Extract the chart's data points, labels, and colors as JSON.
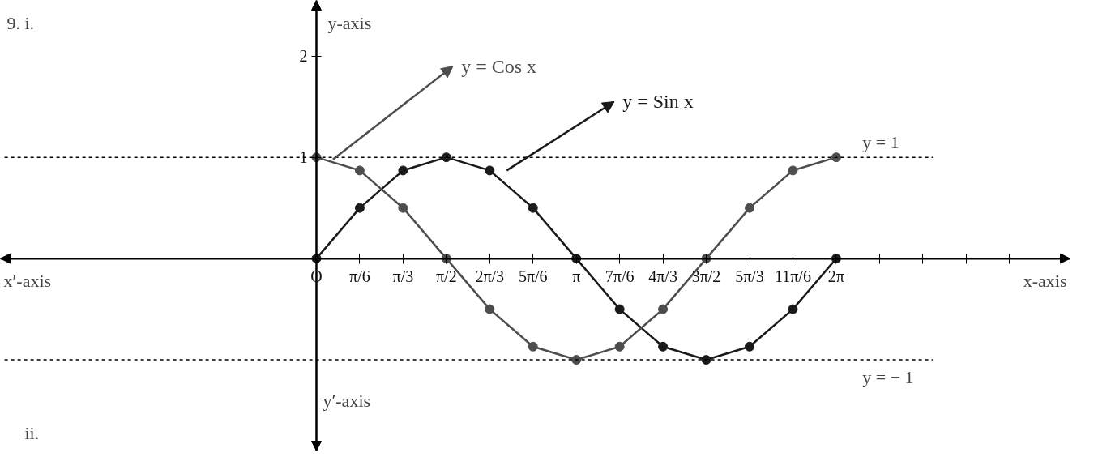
{
  "chart_data": {
    "type": "line",
    "xlabel": "x-axis",
    "ylabel": "y-axis",
    "annotations": [
      "9.  i.",
      "ii.",
      "x′-axis",
      "y′-axis"
    ],
    "x": [
      0,
      0.5236,
      1.0472,
      1.5708,
      2.0944,
      2.618,
      3.1416,
      3.6652,
      4.1888,
      4.7124,
      5.236,
      5.7596,
      6.2832
    ],
    "series": [
      {
        "name": "y = Sin x",
        "color": "#1a1a1a",
        "values": [
          0,
          0.5,
          0.87,
          1,
          0.87,
          0.5,
          0,
          -0.5,
          -0.87,
          -1,
          -0.87,
          -0.5,
          0
        ]
      },
      {
        "name": "y = Cos x",
        "color": "#4d4d4d",
        "values": [
          1,
          0.87,
          0.5,
          0,
          -0.5,
          -0.87,
          -1,
          -0.87,
          -0.5,
          0,
          0.5,
          0.87,
          1
        ]
      }
    ],
    "xlim": [
      -3.82,
      9.11
    ],
    "ylim": [
      -1.9,
      2.55
    ],
    "xticks": [
      {
        "value": 0,
        "label": "O"
      },
      {
        "value": 0.5236,
        "label": "π/6"
      },
      {
        "value": 1.0472,
        "label": "π/3"
      },
      {
        "value": 1.5708,
        "label": "π/2"
      },
      {
        "value": 2.0944,
        "label": "2π/3"
      },
      {
        "value": 2.618,
        "label": "5π/6"
      },
      {
        "value": 3.1416,
        "label": "π"
      },
      {
        "value": 3.6652,
        "label": "7π/6"
      },
      {
        "value": 4.1888,
        "label": "4π/3"
      },
      {
        "value": 4.7124,
        "label": "3π/2"
      },
      {
        "value": 5.236,
        "label": "5π/3"
      },
      {
        "value": 5.7596,
        "label": "11π/6"
      },
      {
        "value": 6.2832,
        "label": "2π"
      },
      {
        "value": 6.8068,
        "label": null
      },
      {
        "value": 7.3304,
        "label": null
      },
      {
        "value": 7.854,
        "label": null
      },
      {
        "value": 8.3776,
        "label": null
      }
    ],
    "yticks": [
      1,
      2
    ],
    "ref_lines": [
      {
        "axis": "y",
        "value": 1,
        "label": "y = 1",
        "line_style": "dashed"
      },
      {
        "axis": "y",
        "value": -1,
        "label": "y = − 1",
        "line_style": "dashed"
      }
    ],
    "marker": "circle",
    "line_style": "solid",
    "grid": false,
    "legend": "top"
  }
}
